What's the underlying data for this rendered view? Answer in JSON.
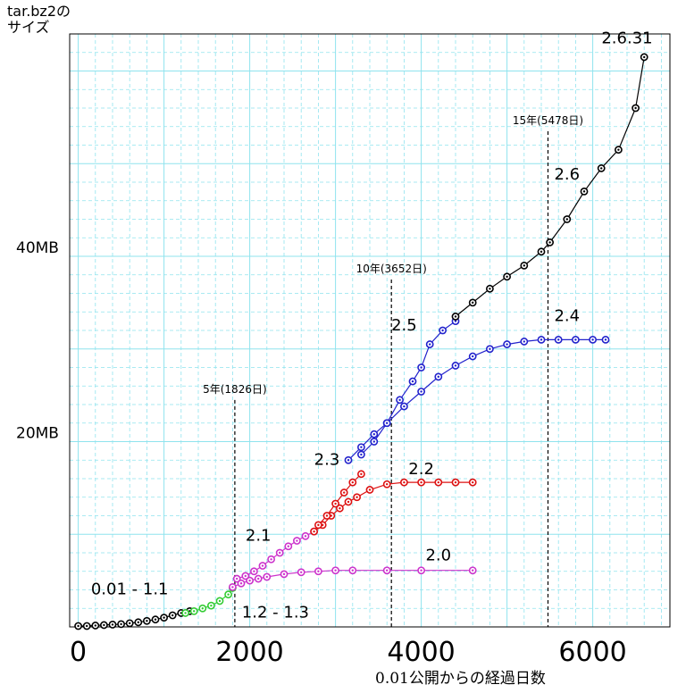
{
  "chart_data": {
    "type": "scatter",
    "ylabel": "tar.bz2の\nサイズ",
    "xlabel": "0.01公開からの経過日数",
    "xlim": [
      -100,
      6900
    ],
    "ylim": [
      0,
      64
    ],
    "x_ticks": [
      0,
      2000,
      4000,
      6000
    ],
    "y_ticks": [
      {
        "value": 20,
        "label": "20MB"
      },
      {
        "value": 40,
        "label": "40MB"
      }
    ],
    "grid": true,
    "vlines": [
      {
        "x": 1826,
        "label": "5年(1826日)"
      },
      {
        "x": 3652,
        "label": "10年(3652日)"
      },
      {
        "x": 5478,
        "label": "15年(5478日)"
      }
    ],
    "series": [
      {
        "name": "0.01 - 1.1",
        "color": "#000000",
        "x": [
          0,
          100,
          200,
          300,
          400,
          500,
          600,
          700,
          800,
          900,
          1000,
          1100,
          1200,
          1300
        ],
        "y": [
          0.1,
          0.1,
          0.15,
          0.2,
          0.25,
          0.3,
          0.4,
          0.5,
          0.65,
          0.8,
          1.0,
          1.25,
          1.5,
          1.7
        ]
      },
      {
        "name": "1.2 - 1.3",
        "color": "#33cc33",
        "x": [
          1250,
          1350,
          1450,
          1550,
          1650,
          1750,
          1800
        ],
        "y": [
          1.5,
          1.7,
          2.0,
          2.3,
          2.8,
          3.5,
          4.2
        ]
      },
      {
        "name": "2.0",
        "color": "#cc33cc",
        "x": [
          1800,
          1900,
          2000,
          2100,
          2200,
          2400,
          2600,
          2800,
          3000,
          3200,
          3600,
          4000,
          4600
        ],
        "y": [
          4.3,
          4.7,
          5.0,
          5.2,
          5.4,
          5.7,
          5.9,
          6.0,
          6.1,
          6.1,
          6.1,
          6.1,
          6.1
        ]
      },
      {
        "name": "2.1",
        "color": "#cc33cc",
        "x": [
          1850,
          1950,
          2050,
          2150,
          2250,
          2350,
          2450,
          2550,
          2650,
          2750
        ],
        "y": [
          5.2,
          5.5,
          6.0,
          6.6,
          7.3,
          8.0,
          8.7,
          9.3,
          9.8,
          10.3
        ]
      },
      {
        "name": "2.2",
        "color": "#dd1111",
        "x": [
          2750,
          2850,
          2950,
          3050,
          3150,
          3250,
          3400,
          3600,
          3800,
          4000,
          4200,
          4400,
          4600
        ],
        "y": [
          10.3,
          11.0,
          12.0,
          12.8,
          13.5,
          14.0,
          14.8,
          15.4,
          15.6,
          15.6,
          15.6,
          15.6,
          15.6
        ]
      },
      {
        "name": "2.3",
        "color": "#dd1111",
        "x": [
          2800,
          2900,
          3000,
          3100,
          3200,
          3300
        ],
        "y": [
          11.0,
          12.0,
          13.3,
          14.5,
          15.6,
          16.5
        ]
      },
      {
        "name": "2.4",
        "color": "#2222cc",
        "x": [
          3150,
          3300,
          3450,
          3600,
          3800,
          4000,
          4200,
          4400,
          4600,
          4800,
          5000,
          5200,
          5400,
          5600,
          5800,
          6000,
          6150
        ],
        "y": [
          18.0,
          19.4,
          20.8,
          22.0,
          23.8,
          25.4,
          27.0,
          28.2,
          29.2,
          30.0,
          30.5,
          30.8,
          31.0,
          31.0,
          31.0,
          31.0,
          31.0
        ]
      },
      {
        "name": "2.5",
        "color": "#2222cc",
        "x": [
          3300,
          3450,
          3600,
          3750,
          3900,
          4000,
          4100,
          4250,
          4400
        ],
        "y": [
          18.6,
          20.0,
          22.0,
          24.5,
          26.5,
          28.0,
          30.5,
          32.0,
          33.0
        ]
      },
      {
        "name": "2.6",
        "color": "#000000",
        "x": [
          4400,
          4600,
          4800,
          5000,
          5200,
          5400,
          5500,
          5700,
          5900,
          6100,
          6300,
          6500,
          6600
        ],
        "y": [
          33.5,
          35.0,
          36.5,
          37.8,
          39.0,
          40.5,
          41.5,
          44.0,
          47.0,
          49.5,
          51.5,
          56.0,
          61.5
        ]
      }
    ],
    "annotations": [
      {
        "text": "0.01 - 1.1",
        "x": 600,
        "y": 3.5
      },
      {
        "text": "1.2 - 1.3",
        "x": 2300,
        "y": 1.0
      },
      {
        "text": "2.0",
        "x": 4200,
        "y": 7.2
      },
      {
        "text": "2.1",
        "x": 2100,
        "y": 9.3
      },
      {
        "text": "2.2",
        "x": 4000,
        "y": 16.5
      },
      {
        "text": "2.3",
        "x": 2900,
        "y": 17.5
      },
      {
        "text": "2.4",
        "x": 5700,
        "y": 33.0
      },
      {
        "text": "2.5",
        "x": 3800,
        "y": 32.0
      },
      {
        "text": "2.6",
        "x": 5700,
        "y": 48.3
      },
      {
        "text": "2.6.31",
        "x": 6400,
        "y": 63.0
      }
    ]
  }
}
